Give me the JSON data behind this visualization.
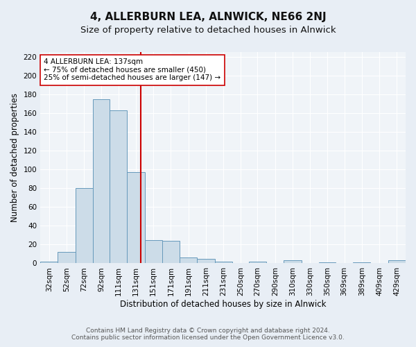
{
  "title": "4, ALLERBURN LEA, ALNWICK, NE66 2NJ",
  "subtitle": "Size of property relative to detached houses in Alnwick",
  "xlabel": "Distribution of detached houses by size in Alnwick",
  "ylabel": "Number of detached properties",
  "footer_lines": [
    "Contains HM Land Registry data © Crown copyright and database right 2024.",
    "Contains public sector information licensed under the Open Government Licence v3.0."
  ],
  "bin_labels": [
    "32sqm",
    "52sqm",
    "72sqm",
    "92sqm",
    "111sqm",
    "131sqm",
    "151sqm",
    "171sqm",
    "191sqm",
    "211sqm",
    "231sqm",
    "250sqm",
    "270sqm",
    "290sqm",
    "310sqm",
    "330sqm",
    "350sqm",
    "369sqm",
    "389sqm",
    "409sqm",
    "429sqm"
  ],
  "bin_edges": [
    22,
    42,
    62,
    82,
    101,
    121,
    141,
    161,
    181,
    201,
    221,
    241,
    260,
    280,
    300,
    320,
    340,
    359,
    379,
    399,
    419,
    439
  ],
  "bar_heights": [
    2,
    12,
    80,
    175,
    163,
    97,
    25,
    24,
    6,
    5,
    2,
    0,
    2,
    0,
    3,
    0,
    1,
    0,
    1,
    0,
    3
  ],
  "bar_color": "#ccdce8",
  "bar_edge_color": "#6699bb",
  "vline_x": 137,
  "vline_color": "#cc0000",
  "annotation_line1": "4 ALLERBURN LEA: 137sqm",
  "annotation_line2": "← 75% of detached houses are smaller (450)",
  "annotation_line3": "25% of semi-detached houses are larger (147) →",
  "annotation_box_color": "#ffffff",
  "annotation_box_edge": "#cc0000",
  "ylim": [
    0,
    225
  ],
  "yticks": [
    0,
    20,
    40,
    60,
    80,
    100,
    120,
    140,
    160,
    180,
    200,
    220
  ],
  "bg_color": "#e8eef5",
  "plot_bg_color": "#f0f4f8",
  "grid_color": "#ffffff",
  "title_fontsize": 11,
  "subtitle_fontsize": 9.5,
  "axis_label_fontsize": 8.5,
  "tick_fontsize": 7.5,
  "annotation_fontsize": 7.5,
  "footer_fontsize": 6.5
}
